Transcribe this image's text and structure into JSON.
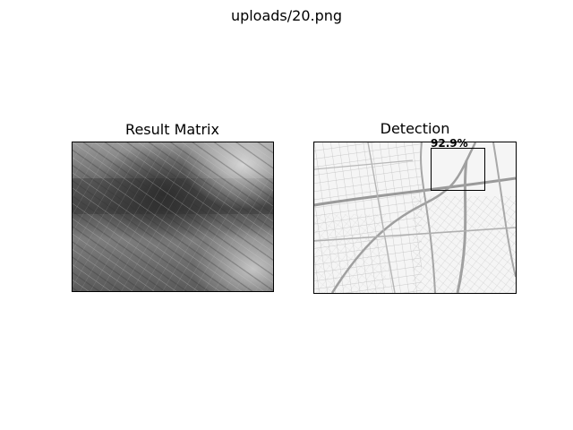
{
  "figure": {
    "suptitle": "uploads/20.png"
  },
  "panels": [
    {
      "title": "Result Matrix",
      "image": "grayscale-correlation-heatmap"
    },
    {
      "title": "Detection",
      "image": "street-map",
      "detection_label": "92.9%"
    }
  ]
}
